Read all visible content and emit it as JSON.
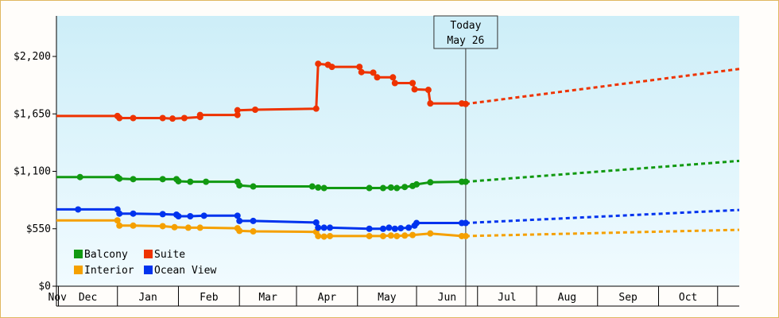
{
  "chart_data": {
    "type": "line",
    "title": "",
    "xlabel": "",
    "ylabel": "",
    "ylim": [
      0,
      2200
    ],
    "y_ticks": [
      {
        "value": 0,
        "label": "$0"
      },
      {
        "value": 550,
        "label": "$550"
      },
      {
        "value": 1100,
        "label": "$1,100"
      },
      {
        "value": 1650,
        "label": "$1,650"
      },
      {
        "value": 2200,
        "label": "$2,200"
      }
    ],
    "x_months": [
      "Nov",
      "Dec",
      "Jan",
      "Feb",
      "Mar",
      "Apr",
      "May",
      "Jun",
      "Jul",
      "Aug",
      "Sep",
      "Oct"
    ],
    "x_range": [
      "2023-10-31",
      "2024-10-12"
    ],
    "today": {
      "line1": "Today",
      "line2": "May 26",
      "date": "2024-05-26"
    },
    "legend_position": "bottom-left",
    "grid": false,
    "series": [
      {
        "name": "Balcony",
        "color": "#119911",
        "history": [
          [
            "2023-10-31",
            1045
          ],
          [
            "2023-11-12",
            1045
          ],
          [
            "2023-12-01",
            1045
          ],
          [
            "2023-12-02",
            1030
          ],
          [
            "2023-12-09",
            1025
          ],
          [
            "2023-12-24",
            1025
          ],
          [
            "2023-12-31",
            1025
          ],
          [
            "2024-01-01",
            1005
          ],
          [
            "2024-01-07",
            1000
          ],
          [
            "2024-01-15",
            1000
          ],
          [
            "2024-01-31",
            1000
          ],
          [
            "2024-02-01",
            965
          ],
          [
            "2024-02-08",
            955
          ],
          [
            "2024-03-09",
            955
          ],
          [
            "2024-03-12",
            945
          ],
          [
            "2024-03-15",
            940
          ],
          [
            "2024-04-07",
            940
          ],
          [
            "2024-04-14",
            940
          ],
          [
            "2024-04-18",
            945
          ],
          [
            "2024-04-21",
            940
          ],
          [
            "2024-04-25",
            950
          ],
          [
            "2024-04-29",
            960
          ],
          [
            "2024-05-01",
            975
          ],
          [
            "2024-05-08",
            995
          ],
          [
            "2024-05-24",
            1000
          ],
          [
            "2024-05-26",
            1000
          ]
        ],
        "forecast": [
          [
            "2024-05-26",
            1000
          ],
          [
            "2024-10-12",
            1200
          ]
        ]
      },
      {
        "name": "Suite",
        "color": "#ee3300",
        "history": [
          [
            "2023-10-31",
            1630
          ],
          [
            "2023-12-01",
            1630
          ],
          [
            "2023-12-02",
            1610
          ],
          [
            "2023-12-09",
            1610
          ],
          [
            "2023-12-24",
            1610
          ],
          [
            "2023-12-29",
            1605
          ],
          [
            "2024-01-04",
            1610
          ],
          [
            "2024-01-12",
            1620
          ],
          [
            "2024-01-12",
            1640
          ],
          [
            "2024-01-31",
            1640
          ],
          [
            "2024-01-31",
            1685
          ],
          [
            "2024-02-09",
            1690
          ],
          [
            "2024-03-11",
            1700
          ],
          [
            "2024-03-12",
            2130
          ],
          [
            "2024-03-17",
            2120
          ],
          [
            "2024-03-19",
            2100
          ],
          [
            "2024-04-02",
            2100
          ],
          [
            "2024-04-03",
            2050
          ],
          [
            "2024-04-09",
            2045
          ],
          [
            "2024-04-11",
            2000
          ],
          [
            "2024-04-19",
            2000
          ],
          [
            "2024-04-20",
            1945
          ],
          [
            "2024-04-29",
            1945
          ],
          [
            "2024-04-30",
            1885
          ],
          [
            "2024-05-07",
            1880
          ],
          [
            "2024-05-08",
            1750
          ],
          [
            "2024-05-24",
            1750
          ],
          [
            "2024-05-26",
            1745
          ]
        ],
        "forecast": [
          [
            "2024-05-26",
            1745
          ],
          [
            "2024-10-12",
            2080
          ]
        ]
      },
      {
        "name": "Interior",
        "color": "#f5a000",
        "history": [
          [
            "2023-10-31",
            630
          ],
          [
            "2023-12-01",
            630
          ],
          [
            "2023-12-02",
            580
          ],
          [
            "2023-12-09",
            580
          ],
          [
            "2023-12-24",
            575
          ],
          [
            "2023-12-30",
            565
          ],
          [
            "2024-01-06",
            560
          ],
          [
            "2024-01-12",
            560
          ],
          [
            "2024-01-31",
            555
          ],
          [
            "2024-02-01",
            530
          ],
          [
            "2024-02-08",
            525
          ],
          [
            "2024-03-11",
            520
          ],
          [
            "2024-03-12",
            480
          ],
          [
            "2024-03-15",
            475
          ],
          [
            "2024-03-18",
            480
          ],
          [
            "2024-04-07",
            480
          ],
          [
            "2024-04-14",
            480
          ],
          [
            "2024-04-18",
            485
          ],
          [
            "2024-04-21",
            480
          ],
          [
            "2024-04-25",
            485
          ],
          [
            "2024-04-29",
            490
          ],
          [
            "2024-05-08",
            505
          ],
          [
            "2024-05-24",
            480
          ],
          [
            "2024-05-26",
            480
          ]
        ],
        "forecast": [
          [
            "2024-05-26",
            480
          ],
          [
            "2024-10-12",
            540
          ]
        ]
      },
      {
        "name": "Ocean View",
        "color": "#0033ee",
        "history": [
          [
            "2023-10-31",
            735
          ],
          [
            "2023-11-11",
            735
          ],
          [
            "2023-12-01",
            735
          ],
          [
            "2023-12-02",
            695
          ],
          [
            "2023-12-09",
            695
          ],
          [
            "2023-12-24",
            690
          ],
          [
            "2023-12-31",
            685
          ],
          [
            "2024-01-01",
            670
          ],
          [
            "2024-01-07",
            670
          ],
          [
            "2024-01-14",
            675
          ],
          [
            "2024-01-31",
            675
          ],
          [
            "2024-02-01",
            625
          ],
          [
            "2024-02-08",
            625
          ],
          [
            "2024-03-11",
            610
          ],
          [
            "2024-03-12",
            560
          ],
          [
            "2024-03-15",
            560
          ],
          [
            "2024-03-18",
            560
          ],
          [
            "2024-04-07",
            550
          ],
          [
            "2024-04-14",
            550
          ],
          [
            "2024-04-17",
            560
          ],
          [
            "2024-04-20",
            550
          ],
          [
            "2024-04-23",
            555
          ],
          [
            "2024-04-27",
            560
          ],
          [
            "2024-04-30",
            580
          ],
          [
            "2024-05-01",
            605
          ],
          [
            "2024-05-24",
            605
          ],
          [
            "2024-05-26",
            605
          ]
        ],
        "forecast": [
          [
            "2024-05-26",
            605
          ],
          [
            "2024-10-12",
            730
          ]
        ]
      }
    ],
    "legend": [
      {
        "label": "Balcony",
        "color": "#119911"
      },
      {
        "label": "Suite",
        "color": "#ee3300"
      },
      {
        "label": "Interior",
        "color": "#f5a000"
      },
      {
        "label": "Ocean View",
        "color": "#0033ee"
      }
    ],
    "background_gradient": [
      "#cdeef8",
      "#f1fbff"
    ]
  }
}
